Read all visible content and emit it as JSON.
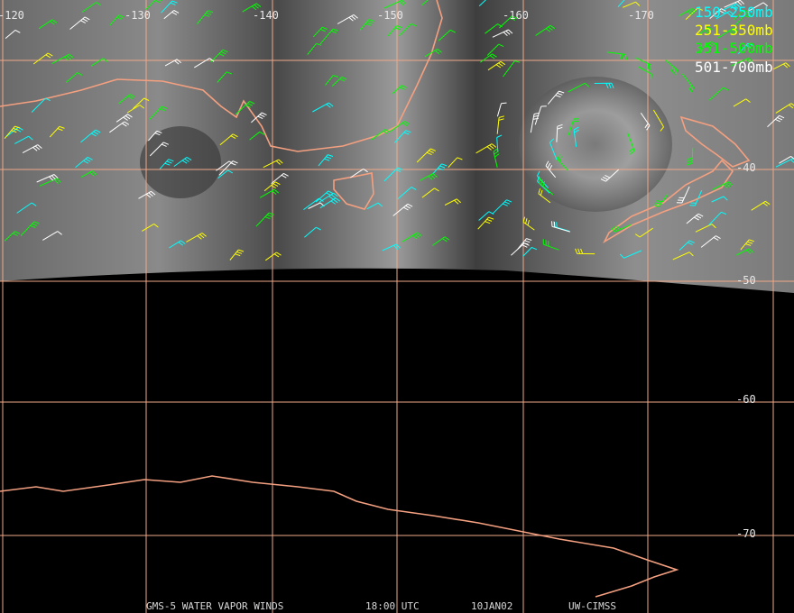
{
  "map": {
    "longitude_labels": [
      "-120",
      "-130",
      "-140",
      "-150",
      "-160",
      "-170"
    ],
    "latitude_labels": [
      "-40",
      "-50",
      "-60",
      "-70"
    ],
    "legend": [
      {
        "label": "150-250mb",
        "color": "#00ffff"
      },
      {
        "label": "251-350mb",
        "color": "#ffff00"
      },
      {
        "label": "351-500mb",
        "color": "#00ff00"
      },
      {
        "label": "501-700mb",
        "color": "#ffffff"
      }
    ],
    "footer": [
      "GMS-5 WATER VAPOR WINDS",
      "18:00 UTC",
      "10JAN02",
      "UW-CIMSS"
    ]
  }
}
